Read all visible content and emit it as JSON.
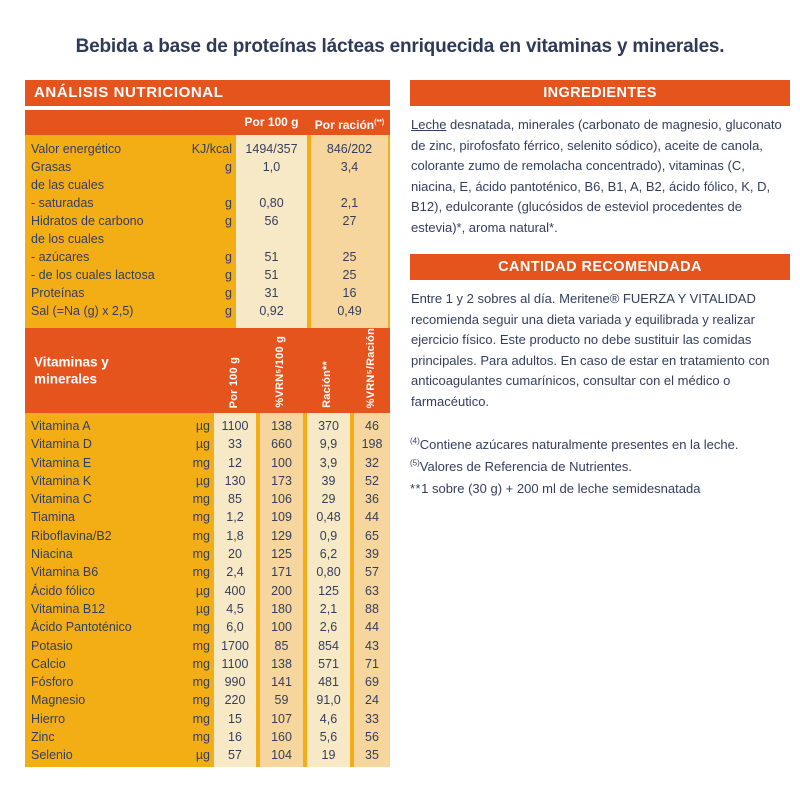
{
  "title": "Bebida a base de proteínas lácteas enriquecida en vitaminas y minerales.",
  "colors": {
    "orange": "#E5541D",
    "golden_yellow": "#F3AE16",
    "cream_column": "#F8E9C6",
    "tan_column": "#F6D69C",
    "navy_text": "#333E5F"
  },
  "table": {
    "header": "ANÁLISIS NUTRICIONAL",
    "col_per100": "Por 100 g",
    "col_racion": "Por ración",
    "col_racion_sup": "(**)",
    "macro_rows": [
      {
        "label": "Valor energético",
        "unit": "KJ/kcal",
        "per100": "1494/357",
        "racion": "846/202"
      },
      {
        "label": "Grasas",
        "unit": "g",
        "per100": "1,0",
        "racion": "3,4"
      },
      {
        "label": "de las cuales",
        "unit": "",
        "per100": "",
        "racion": ""
      },
      {
        "label": "- saturadas",
        "unit": "g",
        "per100": "0,80",
        "racion": "2,1"
      },
      {
        "label": "Hidratos de carbono",
        "unit": "g",
        "per100": "56",
        "racion": "27"
      },
      {
        "label": "de los cuales",
        "unit": "",
        "per100": "",
        "racion": ""
      },
      {
        "label": "- azúcares",
        "unit": "g",
        "per100": "51",
        "racion": "25"
      },
      {
        "label": "- de los cuales lactosa",
        "unit": "g",
        "per100": "51",
        "racion": "25"
      },
      {
        "label": "Proteínas",
        "unit": "g",
        "per100": "31",
        "racion": "16"
      },
      {
        "label": "Sal (=Na (g) x 2,5)",
        "unit": "g",
        "per100": "0,92",
        "racion": "0,49"
      }
    ],
    "vitamins_title": "Vitaminas y\nminerales",
    "vitamins_cols": [
      "Por 100 g",
      "%VRN⁵/100 g",
      "Ración**",
      "%VRN⁵/Ración"
    ],
    "vitamin_rows": [
      {
        "label": "Vitamina A",
        "unit": "µg",
        "values": [
          "1100",
          "138",
          "370",
          "46"
        ]
      },
      {
        "label": "Vitamina D",
        "unit": "µg",
        "values": [
          "33",
          "660",
          "9,9",
          "198"
        ]
      },
      {
        "label": "Vitamina E",
        "unit": "mg",
        "values": [
          "12",
          "100",
          "3,9",
          "32"
        ]
      },
      {
        "label": "Vitamina K",
        "unit": "µg",
        "values": [
          "130",
          "173",
          "39",
          "52"
        ]
      },
      {
        "label": "Vitamina C",
        "unit": "mg",
        "values": [
          "85",
          "106",
          "29",
          "36"
        ]
      },
      {
        "label": "Tiamina",
        "unit": "mg",
        "values": [
          "1,2",
          "109",
          "0,48",
          "44"
        ]
      },
      {
        "label": "Riboflavina/B2",
        "unit": "mg",
        "values": [
          "1,8",
          "129",
          "0,9",
          "65"
        ]
      },
      {
        "label": "Niacina",
        "unit": "mg",
        "values": [
          "20",
          "125",
          "6,2",
          "39"
        ]
      },
      {
        "label": "Vitamina B6",
        "unit": "mg",
        "values": [
          "2,4",
          "171",
          "0,80",
          "57"
        ]
      },
      {
        "label": "Ácido fólico",
        "unit": "µg",
        "values": [
          "400",
          "200",
          "125",
          "63"
        ]
      },
      {
        "label": "Vitamina B12",
        "unit": "µg",
        "values": [
          "4,5",
          "180",
          "2,1",
          "88"
        ]
      },
      {
        "label": "Ácido Pantoténico",
        "unit": "mg",
        "values": [
          "6,0",
          "100",
          "2,6",
          "44"
        ]
      },
      {
        "label": "Potasio",
        "unit": "mg",
        "values": [
          "1700",
          "85",
          "854",
          "43"
        ]
      },
      {
        "label": "Calcio",
        "unit": "mg",
        "values": [
          "1100",
          "138",
          "571",
          "71"
        ]
      },
      {
        "label": "Fósforo",
        "unit": "mg",
        "values": [
          "990",
          "141",
          "481",
          "69"
        ]
      },
      {
        "label": "Magnesio",
        "unit": "mg",
        "values": [
          "220",
          "59",
          "91,0",
          "24"
        ]
      },
      {
        "label": "Hierro",
        "unit": "mg",
        "values": [
          "15",
          "107",
          "4,6",
          "33"
        ]
      },
      {
        "label": "Zinc",
        "unit": "mg",
        "values": [
          "16",
          "160",
          "5,6",
          "56"
        ]
      },
      {
        "label": "Selenio",
        "unit": "µg",
        "values": [
          "57",
          "104",
          "19",
          "35"
        ]
      }
    ]
  },
  "ingredients": {
    "header": "INGREDIENTES",
    "lead": "Leche",
    "rest": " desnatada, minerales (carbonato de magnesio, gluconato de zinc, pirofosfato férrico, selenito sódico), aceite de canola, colorante zumo de remolacha concentrado), vitaminas (C, niacina, E, ácido pantoténico, B6, B1, A, B2, ácido fólico, K, D, B12), edulcorante (glucósidos de esteviol procedentes de estevia)*, aroma natural*."
  },
  "recommended": {
    "header": "CANTIDAD RECOMENDADA",
    "text": "Entre 1 y 2 sobres al día. Meritene® FUERZA Y VITALIDAD recomienda seguir una dieta variada y equilibrada y realizar ejercicio físico. Este producto no debe sustituir las comidas principales. Para adultos. En caso de estar en tratamiento con anticoagulantes cumarínicos, consultar con el médico o farmacéutico."
  },
  "footnotes": [
    {
      "marker": "(4)",
      "text": "Contiene azúcares naturalmente presentes en la leche."
    },
    {
      "marker": "(5)",
      "text": "Valores de Referencia de Nutrientes."
    },
    {
      "marker": "**",
      "text": "1 sobre (30 g) + 200 ml de leche semidesnatada"
    }
  ]
}
